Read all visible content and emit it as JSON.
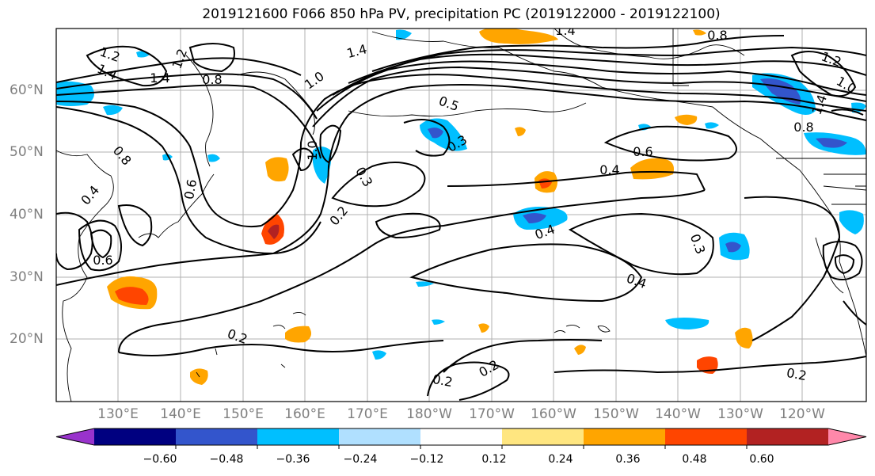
{
  "title": "2019121600 F066 850 hPa PV, precipitation PC (2019122000 - 2019122100)",
  "lat_labels": [
    "60°N",
    "50°N",
    "40°N",
    "30°N",
    "20°N"
  ],
  "lon_labels": [
    "130°E",
    "140°E",
    "150°E",
    "160°E",
    "170°E",
    "180°W",
    "170°W",
    "160°W",
    "150°W",
    "140°W",
    "130°W",
    "120°W"
  ],
  "colorbar": {
    "colors": [
      "#9933cc",
      "#000080",
      "#3355cc",
      "#00bfff",
      "#b0e0ff",
      "#ffffff",
      "#ffe680",
      "#ffa500",
      "#ff4500",
      "#b22222",
      "#ff88aa"
    ],
    "ticks": [
      "−0.60",
      "−0.48",
      "−0.36",
      "−0.24",
      "−0.12",
      "0.12",
      "0.24",
      "0.36",
      "0.48",
      "0.60"
    ]
  },
  "contour_labels": [
    "1.2",
    "1.4",
    "1.4",
    "1.2",
    "0.8",
    "1.4",
    "1.0",
    "0.5",
    "0.3",
    "0.6",
    "0.4",
    "0.8",
    "1.0",
    "1.4",
    "0.8",
    "0.3",
    "0.2",
    "0.4",
    "0.3",
    "0.4",
    "0.2",
    "0.2",
    "0.2",
    "0.2",
    "0.6",
    "1.2",
    "1.4",
    "0.8",
    "1.0",
    "0.4",
    "0.6"
  ]
}
